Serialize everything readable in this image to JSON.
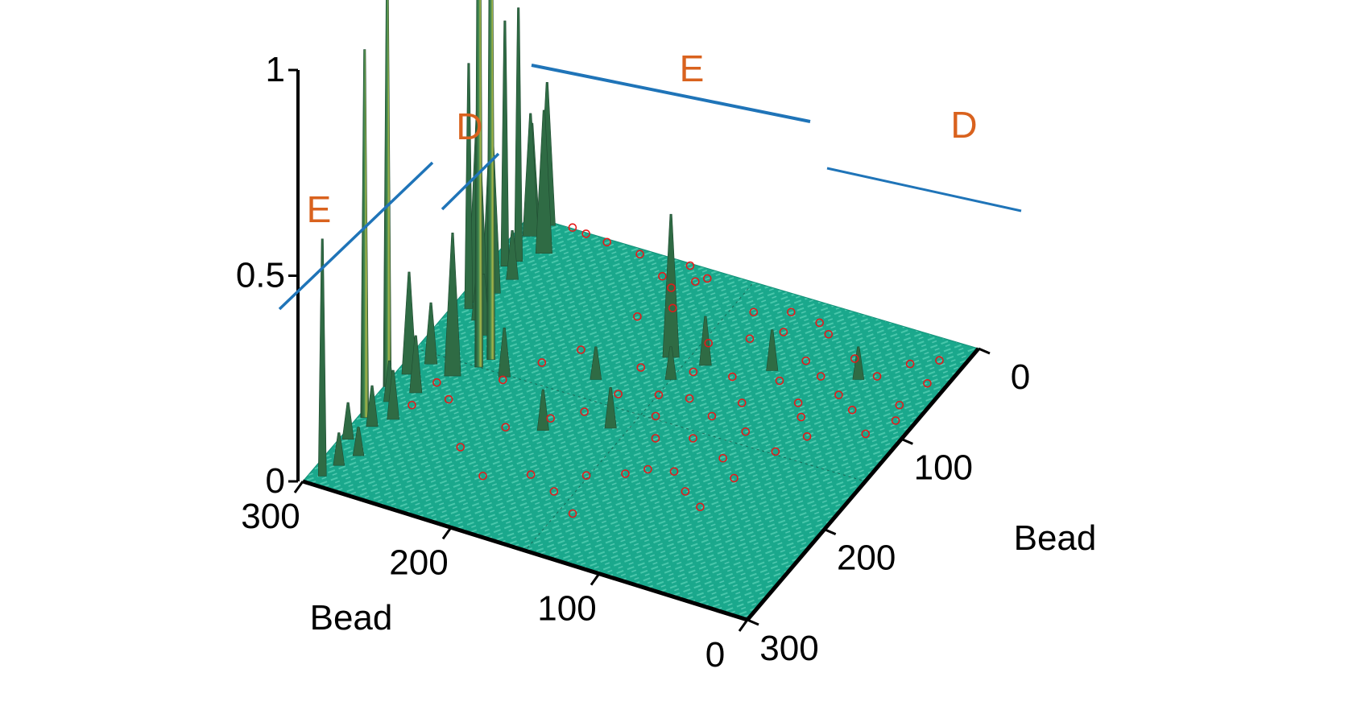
{
  "chart_data": {
    "type": "surface3d",
    "title": "",
    "axes": {
      "x": {
        "label": "Bead",
        "ticks": [
          "300",
          "200",
          "100",
          "0"
        ],
        "range": [
          0,
          300
        ]
      },
      "y": {
        "label": "Bead",
        "ticks": [
          "0",
          "100",
          "200",
          "300"
        ],
        "range": [
          0,
          300
        ]
      },
      "z": {
        "label": "",
        "ticks": [
          "0",
          "0.5",
          "1"
        ],
        "range": [
          0,
          1
        ]
      }
    },
    "region_labels": [
      "E",
      "D",
      "E",
      "D"
    ],
    "colors": {
      "surface": "#1aa88c",
      "surface_light": "#7fe8d0",
      "peak": "#2f6b44",
      "peak_highlight": "#c9cf5a",
      "markers": "#e31b1b",
      "region_text": "#d9621e",
      "region_lines": "#1f74b8",
      "axes": "#000000"
    },
    "peaks": [
      {
        "x": 290,
        "y": 8,
        "z": 0.58
      },
      {
        "x": 276,
        "y": 12,
        "z": 0.08
      },
      {
        "x": 262,
        "y": 18,
        "z": 0.07
      },
      {
        "x": 250,
        "y": 5,
        "z": 0.09
      },
      {
        "x": 232,
        "y": 12,
        "z": 0.1
      },
      {
        "x": 226,
        "y": 4,
        "z": 0.9
      },
      {
        "x": 220,
        "y": 20,
        "z": 0.12
      },
      {
        "x": 205,
        "y": 10,
        "z": 0.1
      },
      {
        "x": 190,
        "y": 20,
        "z": 0.14
      },
      {
        "x": 192,
        "y": 2,
        "z": 1.05
      },
      {
        "x": 175,
        "y": 8,
        "z": 0.25
      },
      {
        "x": 160,
        "y": 15,
        "z": 0.15
      },
      {
        "x": 165,
        "y": 32,
        "z": 0.35
      },
      {
        "x": 150,
        "y": 42,
        "z": 1.6
      },
      {
        "x": 140,
        "y": 45,
        "z": 1.45
      },
      {
        "x": 152,
        "y": 60,
        "z": 0.12
      },
      {
        "x": 120,
        "y": 30,
        "z": 0.15
      },
      {
        "x": 108,
        "y": 20,
        "z": 0.12
      },
      {
        "x": 100,
        "y": 10,
        "z": 0.6
      },
      {
        "x": 92,
        "y": 12,
        "z": 0.5
      },
      {
        "x": 80,
        "y": 15,
        "z": 0.45
      },
      {
        "x": 62,
        "y": 20,
        "z": 0.12
      },
      {
        "x": 52,
        "y": 10,
        "z": 0.6
      },
      {
        "x": 44,
        "y": 15,
        "z": 0.62
      },
      {
        "x": 30,
        "y": 25,
        "z": 0.35
      },
      {
        "x": 18,
        "y": 10,
        "z": 0.3
      },
      {
        "x": 8,
        "y": 6,
        "z": 0.25
      },
      {
        "x": 4,
        "y": 14,
        "z": 0.35
      },
      {
        "x": 90,
        "y": 140,
        "z": 0.35
      },
      {
        "x": 88,
        "y": 162,
        "z": 0.12
      },
      {
        "x": 75,
        "y": 200,
        "z": 0.1
      },
      {
        "x": 170,
        "y": 140,
        "z": 0.1
      },
      {
        "x": 190,
        "y": 105,
        "z": 0.1
      },
      {
        "x": 130,
        "y": 110,
        "z": 0.08
      },
      {
        "x": 110,
        "y": 150,
        "z": 0.08
      },
      {
        "x": 60,
        "y": 250,
        "z": 0.08
      }
    ],
    "markers": [
      {
        "x": 200,
        "y": 85
      },
      {
        "x": 180,
        "y": 105
      },
      {
        "x": 165,
        "y": 120
      },
      {
        "x": 140,
        "y": 130
      },
      {
        "x": 110,
        "y": 130
      },
      {
        "x": 130,
        "y": 152
      },
      {
        "x": 100,
        "y": 160
      },
      {
        "x": 94,
        "y": 183
      },
      {
        "x": 115,
        "y": 200
      },
      {
        "x": 160,
        "y": 190
      },
      {
        "x": 195,
        "y": 195
      },
      {
        "x": 210,
        "y": 210
      },
      {
        "x": 220,
        "y": 225
      },
      {
        "x": 185,
        "y": 230
      },
      {
        "x": 170,
        "y": 215
      },
      {
        "x": 150,
        "y": 240
      },
      {
        "x": 128,
        "y": 250
      },
      {
        "x": 112,
        "y": 238
      },
      {
        "x": 92,
        "y": 262
      },
      {
        "x": 90,
        "y": 290
      },
      {
        "x": 110,
        "y": 280
      },
      {
        "x": 70,
        "y": 230
      },
      {
        "x": 55,
        "y": 260
      },
      {
        "x": 45,
        "y": 240
      },
      {
        "x": 35,
        "y": 272
      },
      {
        "x": 24,
        "y": 286
      },
      {
        "x": 48,
        "y": 290
      },
      {
        "x": 75,
        "y": 285
      },
      {
        "x": 60,
        "y": 215
      },
      {
        "x": 30,
        "y": 215
      },
      {
        "x": 22,
        "y": 205
      },
      {
        "x": 40,
        "y": 190
      },
      {
        "x": 55,
        "y": 175
      },
      {
        "x": 70,
        "y": 155
      },
      {
        "x": 30,
        "y": 165
      },
      {
        "x": 20,
        "y": 185
      },
      {
        "x": 12,
        "y": 125
      },
      {
        "x": 5,
        "y": 110
      },
      {
        "x": 22,
        "y": 100
      },
      {
        "x": 18,
        "y": 120
      },
      {
        "x": 30,
        "y": 110
      },
      {
        "x": 8,
        "y": 78
      },
      {
        "x": 6,
        "y": 55
      },
      {
        "x": 4,
        "y": 40
      },
      {
        "x": 2,
        "y": 30
      },
      {
        "x": 48,
        "y": 120
      },
      {
        "x": 65,
        "y": 105
      },
      {
        "x": 110,
        "y": 90
      },
      {
        "x": 132,
        "y": 75
      },
      {
        "x": 158,
        "y": 62
      },
      {
        "x": 178,
        "y": 28
      },
      {
        "x": 190,
        "y": 42
      },
      {
        "x": 205,
        "y": 25
      },
      {
        "x": 230,
        "y": 70
      },
      {
        "x": 250,
        "y": 95
      },
      {
        "x": 236,
        "y": 120
      },
      {
        "x": 245,
        "y": 140
      },
      {
        "x": 222,
        "y": 150
      },
      {
        "x": 260,
        "y": 160
      },
      {
        "x": 210,
        "y": 170
      },
      {
        "x": 200,
        "y": 180
      },
      {
        "x": 125,
        "y": 170
      },
      {
        "x": 150,
        "y": 160
      },
      {
        "x": 170,
        "y": 170
      },
      {
        "x": 135,
        "y": 190
      },
      {
        "x": 85,
        "y": 210
      },
      {
        "x": 100,
        "y": 230
      },
      {
        "x": 140,
        "y": 215
      },
      {
        "x": 82,
        "y": 248
      }
    ]
  }
}
